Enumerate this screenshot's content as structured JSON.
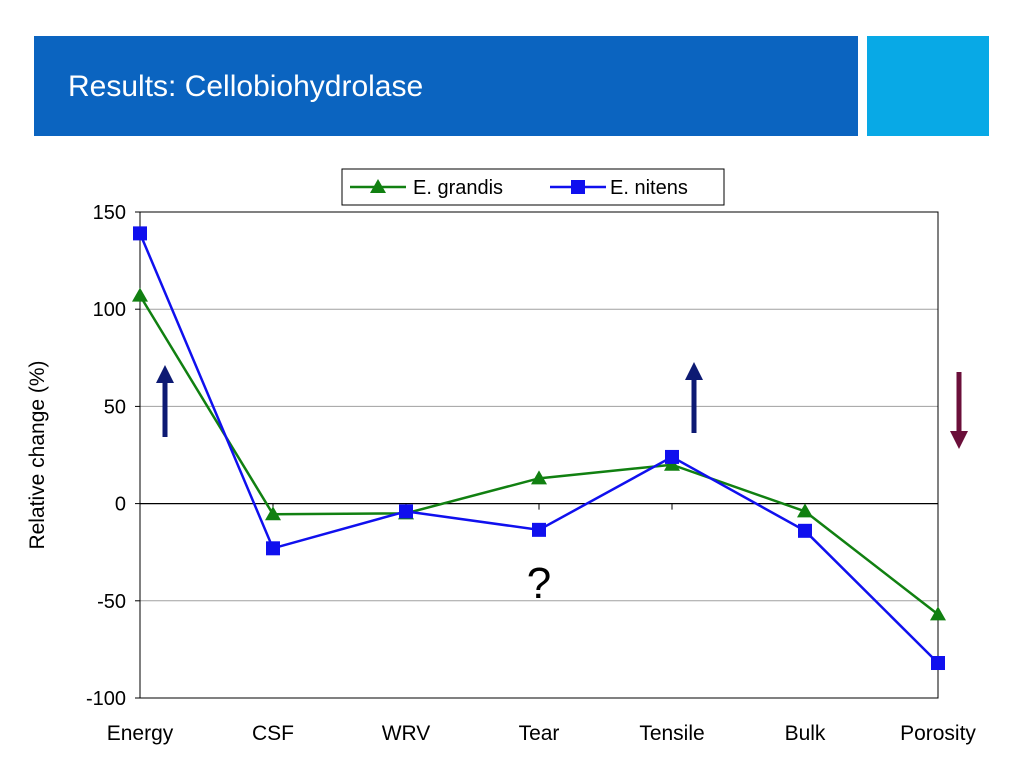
{
  "slide": {
    "title": "Results: Cellobiohydrolase",
    "colors": {
      "title_bar": "#0b64c0",
      "accent_box": "#08a9e6"
    }
  },
  "annotations": {
    "question_mark": "?",
    "arrows": [
      {
        "name": "energy-increase-arrow",
        "category": "Energy",
        "direction": "up",
        "color": "#0d1a73"
      },
      {
        "name": "tensile-increase-arrow",
        "category": "Tensile",
        "direction": "up",
        "color": "#0d1a73"
      },
      {
        "name": "porosity-decrease-arrow",
        "category": "Porosity",
        "direction": "down",
        "color": "#6b0f3a"
      }
    ]
  },
  "chart_data": {
    "type": "line",
    "title": "",
    "xlabel": "",
    "ylabel": "Relative change (%)",
    "categories": [
      "Energy",
      "CSF",
      "WRV",
      "Tear",
      "Tensile",
      "Bulk",
      "Porosity"
    ],
    "ylim": [
      -100,
      150
    ],
    "yticks": [
      150,
      100,
      50,
      0,
      -50,
      -100
    ],
    "grid": true,
    "legend_position": "top",
    "series": [
      {
        "name": "E. grandis",
        "color": "#118011",
        "marker": "triangle",
        "values": [
          107,
          -5.5,
          -5,
          13,
          20,
          -4,
          -57
        ]
      },
      {
        "name": "E. nitens",
        "color": "#1010ee",
        "marker": "square",
        "values": [
          139,
          -23,
          -4,
          -13.5,
          24,
          -14,
          -82
        ]
      }
    ]
  }
}
